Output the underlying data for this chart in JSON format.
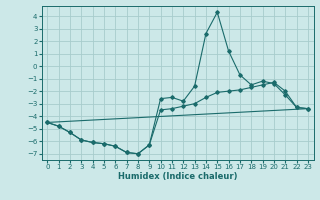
{
  "xlabel": "Humidex (Indice chaleur)",
  "xlim": [
    -0.5,
    23.5
  ],
  "ylim": [
    -7.5,
    4.8
  ],
  "yticks": [
    4,
    3,
    2,
    1,
    0,
    -1,
    -2,
    -3,
    -4,
    -5,
    -6,
    -7
  ],
  "xticks": [
    0,
    1,
    2,
    3,
    4,
    5,
    6,
    7,
    8,
    9,
    10,
    11,
    12,
    13,
    14,
    15,
    16,
    17,
    18,
    19,
    20,
    21,
    22,
    23
  ],
  "background_color": "#cce8e8",
  "grid_color": "#a8cccc",
  "line_color": "#1a6b6b",
  "line1_x": [
    0,
    1,
    2,
    3,
    4,
    5,
    6,
    7,
    8,
    9,
    10,
    11,
    12,
    13,
    14,
    15,
    16,
    17,
    18,
    19,
    20,
    21,
    22,
    23
  ],
  "line1_y": [
    -4.5,
    -4.8,
    -5.3,
    -5.9,
    -6.1,
    -6.2,
    -6.4,
    -6.9,
    -7.0,
    -6.3,
    -2.6,
    -2.5,
    -2.8,
    -1.6,
    2.6,
    4.3,
    1.2,
    -0.7,
    -1.5,
    -1.2,
    -1.4,
    -2.3,
    -3.3,
    -3.4
  ],
  "line2_x": [
    0,
    1,
    2,
    3,
    4,
    5,
    6,
    7,
    8,
    9,
    10,
    11,
    12,
    13,
    14,
    15,
    16,
    17,
    18,
    19,
    20,
    21,
    22,
    23
  ],
  "line2_y": [
    -4.5,
    -4.8,
    -5.3,
    -5.9,
    -6.1,
    -6.2,
    -6.4,
    -6.9,
    -7.0,
    -6.3,
    -3.5,
    -3.4,
    -3.2,
    -3.0,
    -2.5,
    -2.1,
    -2.0,
    -1.9,
    -1.7,
    -1.5,
    -1.3,
    -2.0,
    -3.3,
    -3.4
  ],
  "line3_x": [
    0,
    23
  ],
  "line3_y": [
    -4.5,
    -3.4
  ],
  "tick_fontsize": 5,
  "xlabel_fontsize": 6
}
